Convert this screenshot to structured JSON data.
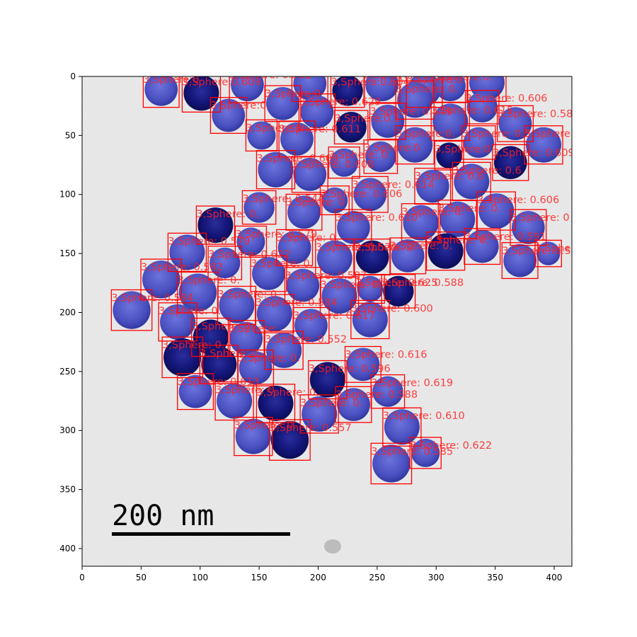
{
  "figure": {
    "xticks": [
      "0",
      "50",
      "100",
      "150",
      "200",
      "250",
      "300",
      "350",
      "400"
    ],
    "yticks": [
      "0",
      "50",
      "100",
      "150",
      "200",
      "250",
      "300",
      "350",
      "400"
    ],
    "xlim": [
      0,
      415
    ],
    "ylim": [
      415,
      0
    ]
  },
  "scale_bar": {
    "text": "200 nm",
    "length_nm": 200
  },
  "colors": {
    "box": "#ff0000",
    "label": "#ff2020",
    "particle_light": "#6a70d8",
    "particle_dark": "#10126a",
    "background": "#ececec"
  },
  "detections": [
    {
      "x": 67,
      "y": 11,
      "r": 14,
      "label": "3,Sphere:0",
      "dark": false
    },
    {
      "x": 101,
      "y": 14,
      "r": 15,
      "label": "3,Sphere:0.609",
      "dark": true
    },
    {
      "x": 140,
      "y": 7,
      "r": 14,
      "label": "3,Sphere: 0.562",
      "dark": false
    },
    {
      "x": 193,
      "y": 6,
      "r": 14,
      "label": "3,Sphere:0.0",
      "dark": false
    },
    {
      "x": 225,
      "y": 12,
      "r": 13,
      "label": "3,Sphere:0.604",
      "dark": true
    },
    {
      "x": 254,
      "y": 7,
      "r": 14,
      "label": "3,Sphere:0",
      "dark": false
    },
    {
      "x": 290,
      "y": 11,
      "r": 14,
      "label": "3,Sphere:0.",
      "dark": false
    },
    {
      "x": 312,
      "y": 8,
      "r": 13,
      "label": "3,Sphere:0.",
      "dark": false
    },
    {
      "x": 343,
      "y": 5,
      "r": 15,
      "label": "3,Sphere:0.454 0.347",
      "dark": false
    },
    {
      "x": 124,
      "y": 33,
      "r": 14,
      "label": "3,Sphere:0.",
      "dark": false
    },
    {
      "x": 170,
      "y": 23,
      "r": 14,
      "label": "3,Sphere:0",
      "dark": false
    },
    {
      "x": 199,
      "y": 30,
      "r": 14,
      "label": "3,Sphere: 0.629",
      "dark": false
    },
    {
      "x": 228,
      "y": 43,
      "r": 13,
      "label": "3,Sphere:0.1",
      "dark": true
    },
    {
      "x": 259,
      "y": 38,
      "r": 14,
      "label": "3,Sphere: 0.549",
      "dark": false
    },
    {
      "x": 282,
      "y": 20,
      "r": 15,
      "label": "3,Sphere: 0.",
      "dark": false
    },
    {
      "x": 312,
      "y": 38,
      "r": 15,
      "label": "3,Sphere: 0.615",
      "dark": false
    },
    {
      "x": 339,
      "y": 26,
      "r": 13,
      "label": "3,Sphere: 0.606",
      "dark": false
    },
    {
      "x": 367,
      "y": 40,
      "r": 14,
      "label": "3,Sphere: 0.58",
      "dark": false
    },
    {
      "x": 152,
      "y": 50,
      "r": 12,
      "label": "3,Sphere:0.",
      "dark": false
    },
    {
      "x": 182,
      "y": 53,
      "r": 14,
      "label": "3,Sphere: 0.611",
      "dark": false
    },
    {
      "x": 164,
      "y": 79,
      "r": 15,
      "label": "3,Sphere: 0.608",
      "dark": false
    },
    {
      "x": 193,
      "y": 83,
      "r": 14,
      "label": "3,Sphere: 0.608",
      "dark": false
    },
    {
      "x": 222,
      "y": 73,
      "r": 12,
      "label": "3,Sphere: 0",
      "dark": false
    },
    {
      "x": 253,
      "y": 68,
      "r": 13,
      "label": "3,Sphere:0",
      "dark": false
    },
    {
      "x": 282,
      "y": 58,
      "r": 15,
      "label": "3,Sphere:0.",
      "dark": false
    },
    {
      "x": 311,
      "y": 67,
      "r": 11,
      "label": "3,Sphere:0.",
      "dark": true
    },
    {
      "x": 336,
      "y": 56,
      "r": 13,
      "label": "3,Sphere: 0.5",
      "dark": false
    },
    {
      "x": 363,
      "y": 73,
      "r": 14,
      "label": "3,Sphere: 0.609",
      "dark": true
    },
    {
      "x": 391,
      "y": 58,
      "r": 15,
      "label": "3,Sphere: 0.59",
      "dark": false
    },
    {
      "x": 297,
      "y": 93,
      "r": 14,
      "label": "3,Sphere: 0.6",
      "dark": false
    },
    {
      "x": 330,
      "y": 89,
      "r": 15,
      "label": "3,Sphere: 0.6",
      "dark": false
    },
    {
      "x": 244,
      "y": 100,
      "r": 14,
      "label": "3,Sphere: 0.614",
      "dark": false
    },
    {
      "x": 214,
      "y": 105,
      "r": 11,
      "label": "3,Sphere: 0.606",
      "dark": false
    },
    {
      "x": 150,
      "y": 111,
      "r": 13,
      "label": "3,Sphere: 0.544",
      "dark": false
    },
    {
      "x": 188,
      "y": 115,
      "r": 14,
      "label": "3,Sphere: 0",
      "dark": false
    },
    {
      "x": 230,
      "y": 128,
      "r": 14,
      "label": "3,Sphere: 0.610",
      "dark": false
    },
    {
      "x": 287,
      "y": 124,
      "r": 15,
      "label": "3,Sphere: 0.",
      "dark": false
    },
    {
      "x": 318,
      "y": 121,
      "r": 15,
      "label": "3,Sphere: 0.",
      "dark": false
    },
    {
      "x": 351,
      "y": 114,
      "r": 15,
      "label": "3,Sphere: 0.606",
      "dark": false
    },
    {
      "x": 378,
      "y": 128,
      "r": 14,
      "label": "3,Sphere: 0",
      "dark": false
    },
    {
      "x": 113,
      "y": 126,
      "r": 15,
      "label": "3,Sphere: 0.",
      "dark": true
    },
    {
      "x": 143,
      "y": 140,
      "r": 12,
      "label": "3,Sphere: 0.579",
      "dark": false
    },
    {
      "x": 180,
      "y": 145,
      "r": 14,
      "label": "3,Sphere: 0.",
      "dark": false
    },
    {
      "x": 89,
      "y": 149,
      "r": 15,
      "label": "3,Sphere: 0.579",
      "dark": false
    },
    {
      "x": 121,
      "y": 158,
      "r": 13,
      "label": "3,Sphere: 0.622",
      "dark": false
    },
    {
      "x": 214,
      "y": 154,
      "r": 15,
      "label": "3,Sphere: 0.579",
      "dark": false
    },
    {
      "x": 246,
      "y": 153,
      "r": 14,
      "label": "3,Sphere: 0.",
      "dark": true
    },
    {
      "x": 276,
      "y": 152,
      "r": 14,
      "label": "3,Sphere: 0.",
      "dark": false
    },
    {
      "x": 308,
      "y": 148,
      "r": 15,
      "label": "3,Sphere: 0.",
      "dark": true
    },
    {
      "x": 339,
      "y": 144,
      "r": 14,
      "label": "3,Sphere: 0.591",
      "dark": false
    },
    {
      "x": 371,
      "y": 156,
      "r": 14,
      "label": "3,Sphere: 0.5",
      "dark": false
    },
    {
      "x": 395,
      "y": 150,
      "r": 10,
      "label": "3,Sphere: 0",
      "dark": false
    },
    {
      "x": 67,
      "y": 172,
      "r": 16,
      "label": "3,Sphere: 0.582",
      "dark": false
    },
    {
      "x": 158,
      "y": 167,
      "r": 14,
      "label": "3,Sphere: 0.",
      "dark": false
    },
    {
      "x": 98,
      "y": 183,
      "r": 16,
      "label": "3,Sphere: 0.",
      "dark": false
    },
    {
      "x": 187,
      "y": 177,
      "r": 14,
      "label": "3,Sphere: 0.587",
      "dark": false
    },
    {
      "x": 218,
      "y": 186,
      "r": 15,
      "label": "3,Sphere: 0.",
      "dark": false
    },
    {
      "x": 244,
      "y": 180,
      "r": 11,
      "label": "3,Sphere: 0.625",
      "dark": false
    },
    {
      "x": 268,
      "y": 182,
      "r": 13,
      "label": "3,Sphere: 0.588",
      "dark": true
    },
    {
      "x": 42,
      "y": 198,
      "r": 16,
      "label": "3,Sphere: 0.584",
      "dark": false
    },
    {
      "x": 131,
      "y": 194,
      "r": 15,
      "label": "3,Sphere: 0.",
      "dark": false
    },
    {
      "x": 163,
      "y": 201,
      "r": 15,
      "label": "3,Sphere: 0.584",
      "dark": false
    },
    {
      "x": 81,
      "y": 208,
      "r": 15,
      "label": "3,Sphere: 0.",
      "dark": false
    },
    {
      "x": 194,
      "y": 211,
      "r": 14,
      "label": "3,Sphere: 0.617",
      "dark": false
    },
    {
      "x": 244,
      "y": 206,
      "r": 15,
      "label": "3,Sphere: 0.600",
      "dark": false
    },
    {
      "x": 109,
      "y": 221,
      "r": 15,
      "label": "3,Sphere: 0.",
      "dark": true
    },
    {
      "x": 139,
      "y": 222,
      "r": 14,
      "label": "3,Sphere:",
      "dark": false
    },
    {
      "x": 171,
      "y": 232,
      "r": 15,
      "label": "3,Sphere: 0.552",
      "dark": false
    },
    {
      "x": 85,
      "y": 238,
      "r": 16,
      "label": "3,Sphere: 0.",
      "dark": true
    },
    {
      "x": 116,
      "y": 244,
      "r": 15,
      "label": "3,Sphere: 0.",
      "dark": true
    },
    {
      "x": 147,
      "y": 247,
      "r": 14,
      "label": "3,Sphere: 0.",
      "dark": false
    },
    {
      "x": 238,
      "y": 244,
      "r": 14,
      "label": "3,Sphere: 0.616",
      "dark": false
    },
    {
      "x": 208,
      "y": 257,
      "r": 15,
      "label": "3,Sphere: 0.596",
      "dark": true
    },
    {
      "x": 96,
      "y": 267,
      "r": 14,
      "label": "3,Sphere: 0.613",
      "dark": false
    },
    {
      "x": 129,
      "y": 275,
      "r": 15,
      "label": "3,Sphere: 0.",
      "dark": false
    },
    {
      "x": 164,
      "y": 277,
      "r": 15,
      "label": "3,Sphere: 0.",
      "dark": true
    },
    {
      "x": 259,
      "y": 267,
      "r": 13,
      "label": "3,Sphere: 0.619",
      "dark": false
    },
    {
      "x": 230,
      "y": 278,
      "r": 14,
      "label": "3,Sphere: 0.588",
      "dark": false
    },
    {
      "x": 201,
      "y": 286,
      "r": 15,
      "label": "3,Sphere: 0.",
      "dark": false
    },
    {
      "x": 271,
      "y": 297,
      "r": 15,
      "label": "3,Sphere: 0.610",
      "dark": false
    },
    {
      "x": 145,
      "y": 305,
      "r": 15,
      "label": "3,Sphere: 0.",
      "dark": false
    },
    {
      "x": 176,
      "y": 308,
      "r": 16,
      "label": "3,Sphere: 0.557",
      "dark": true
    },
    {
      "x": 291,
      "y": 319,
      "r": 12,
      "label": "3,Sphere: 0.622",
      "dark": false
    },
    {
      "x": 262,
      "y": 328,
      "r": 16,
      "label": "3,Sphere: 0.585",
      "dark": false
    }
  ]
}
